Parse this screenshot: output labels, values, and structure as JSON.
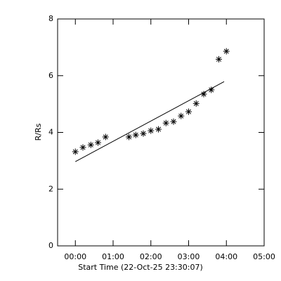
{
  "chart_data": {
    "type": "scatter",
    "xlabel": "Start Time (22-Oct-25 23:30:07)",
    "ylabel": "R/Rs",
    "xlim": [
      -0.47,
      5.0
    ],
    "ylim": [
      0,
      8
    ],
    "xticks": [
      {
        "value": 0,
        "label": "00:00"
      },
      {
        "value": 1,
        "label": "01:00"
      },
      {
        "value": 2,
        "label": "02:00"
      },
      {
        "value": 3,
        "label": "03:00"
      },
      {
        "value": 4,
        "label": "04:00"
      },
      {
        "value": 5,
        "label": "05:00"
      }
    ],
    "yticks": [
      0,
      2,
      4,
      6,
      8
    ],
    "series": [
      {
        "style": "asterisk",
        "color": "#000000",
        "x": [
          0,
          0.2,
          0.41,
          0.6,
          0.8,
          1.42,
          1.6,
          1.8,
          2.0,
          2.2,
          2.4,
          2.6,
          2.8,
          3.0,
          3.2,
          3.4,
          3.6,
          3.8,
          4.0
        ],
        "values": [
          3.32,
          3.47,
          3.56,
          3.64,
          3.84,
          3.84,
          3.91,
          3.96,
          4.06,
          4.11,
          4.33,
          4.38,
          4.58,
          4.73,
          5.02,
          5.35,
          5.5,
          6.58,
          6.86
        ]
      },
      {
        "style": "line",
        "color": "#000000",
        "x": [
          0,
          3.94
        ],
        "values": [
          2.97,
          5.79
        ]
      }
    ]
  }
}
